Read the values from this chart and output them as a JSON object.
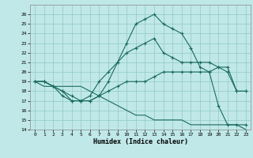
{
  "xlabel": "Humidex (Indice chaleur)",
  "xlim": [
    -0.5,
    23.5
  ],
  "ylim": [
    14,
    27
  ],
  "yticks": [
    14,
    15,
    16,
    17,
    18,
    19,
    20,
    21,
    22,
    23,
    24,
    25,
    26
  ],
  "xticks": [
    0,
    1,
    2,
    3,
    4,
    5,
    6,
    7,
    8,
    9,
    10,
    11,
    12,
    13,
    14,
    15,
    16,
    17,
    18,
    19,
    20,
    21,
    22,
    23
  ],
  "line_color": "#1a6b5e",
  "bg_color": "#c0e8e8",
  "grid_color": "#90c8c8",
  "lines": [
    {
      "x": [
        0,
        1,
        2,
        3,
        4,
        5,
        6,
        7,
        8,
        9,
        10,
        11,
        12,
        13,
        14,
        15,
        16,
        17,
        18,
        19,
        20,
        21,
        22,
        23
      ],
      "y": [
        19,
        19,
        18.5,
        17.5,
        17,
        17,
        17,
        17.5,
        19,
        21,
        23,
        25,
        25.5,
        26,
        25,
        24.5,
        24,
        22.5,
        20.5,
        20,
        16.5,
        14.5,
        14.5,
        14.5
      ],
      "marker": true
    },
    {
      "x": [
        0,
        1,
        2,
        3,
        4,
        5,
        6,
        7,
        8,
        9,
        10,
        11,
        12,
        13,
        14,
        15,
        16,
        17,
        18,
        19,
        20,
        21,
        22,
        23
      ],
      "y": [
        19,
        19,
        18.5,
        18,
        17,
        17,
        17.5,
        19,
        20,
        21,
        22,
        22.5,
        23,
        23.5,
        22,
        21.5,
        21,
        21,
        21,
        21,
        20.5,
        20,
        18,
        18
      ],
      "marker": true
    },
    {
      "x": [
        0,
        1,
        2,
        3,
        4,
        5,
        6,
        7,
        8,
        9,
        10,
        11,
        12,
        13,
        14,
        15,
        16,
        17,
        18,
        19,
        20,
        21,
        22,
        23
      ],
      "y": [
        19,
        19,
        18.5,
        18,
        17.5,
        17,
        17,
        17.5,
        18,
        18.5,
        19,
        19,
        19,
        19.5,
        20,
        20,
        20,
        20,
        20,
        20,
        20.5,
        20.5,
        18,
        18
      ],
      "marker": true
    },
    {
      "x": [
        0,
        1,
        2,
        3,
        4,
        5,
        6,
        7,
        8,
        9,
        10,
        11,
        12,
        13,
        14,
        15,
        16,
        17,
        18,
        19,
        20,
        21,
        22,
        23
      ],
      "y": [
        19,
        18.5,
        18.5,
        18.5,
        18.5,
        18.5,
        18,
        17.5,
        17,
        16.5,
        16,
        15.5,
        15.5,
        15,
        15,
        15,
        15,
        14.5,
        14.5,
        14.5,
        14.5,
        14.5,
        14.5,
        14
      ],
      "marker": false
    }
  ]
}
